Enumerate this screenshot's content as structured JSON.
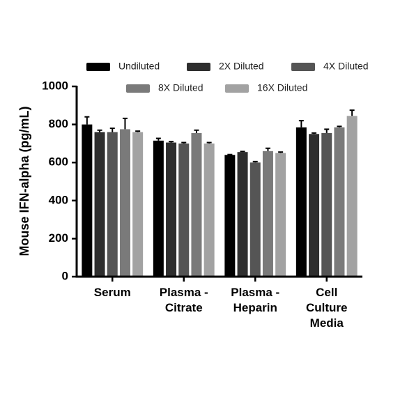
{
  "chart_data": {
    "type": "bar",
    "y_label": "Mouse IFN-alpha (pg/mL)",
    "categories": [
      "Serum",
      "Plasma -\nCitrate",
      "Plasma -\nHeparin",
      "Cell\nCulture\nMedia"
    ],
    "series": [
      {
        "name": "Undiluted",
        "color": "#000000",
        "values": [
          800,
          715,
          640,
          785
        ],
        "errors": [
          40,
          12,
          2,
          35
        ]
      },
      {
        "name": "2X Diluted",
        "color": "#2e2e2e",
        "values": [
          760,
          705,
          655,
          750
        ],
        "errors": [
          10,
          5,
          3,
          5
        ]
      },
      {
        "name": "4X Diluted",
        "color": "#555555",
        "values": [
          760,
          700,
          600,
          755
        ],
        "errors": [
          20,
          5,
          5,
          20
        ]
      },
      {
        "name": "8X Diluted",
        "color": "#7a7a7a",
        "values": [
          775,
          755,
          660,
          785
        ],
        "errors": [
          57,
          15,
          15,
          5
        ]
      },
      {
        "name": "16X Diluted",
        "color": "#a2a2a2",
        "values": [
          760,
          700,
          650,
          845
        ],
        "errors": [
          5,
          5,
          5,
          30
        ]
      }
    ],
    "ylim": [
      0,
      1000
    ],
    "yticks": [
      0,
      200,
      400,
      600,
      800,
      1000
    ]
  }
}
